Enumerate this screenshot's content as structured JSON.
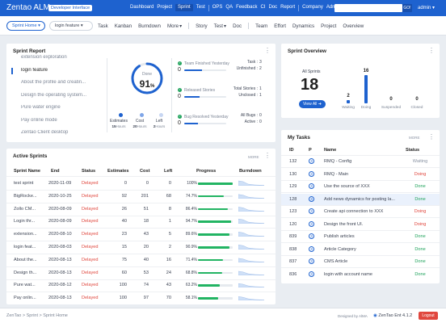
{
  "topbar": {
    "logo": "Zentao ALM",
    "edition": "Developer Interface",
    "nav": [
      "Dashboard",
      "Project",
      "Sprint",
      "Test",
      "OPS",
      "QA",
      "Feedback",
      "CI",
      "Doc",
      "Report",
      "Company",
      "Admin"
    ],
    "active": "Sprint",
    "go_label": "GO!",
    "user": "admin"
  },
  "subbar": {
    "sprint_select": "Sprint Home",
    "feature_select": "login feature",
    "nav": [
      "Task",
      "Kanban",
      "Burndown",
      "More",
      "Story",
      "Test",
      "Doc",
      "Team",
      "Effort",
      "Dynamics",
      "Project",
      "Overview"
    ]
  },
  "report": {
    "title": "Sprint Report",
    "items": [
      "extension exploration",
      "login feature",
      "About the profile and creatin...",
      "Design the operating system...",
      "Pure water engine",
      "Pay online mode",
      "Zentao Client desktop"
    ],
    "selected": "login feature",
    "gauge_label": "Done",
    "gauge_value": "91",
    "gauge_unit": "%",
    "gauge_fraction": 0.91,
    "hours": [
      {
        "label": "Estimates",
        "value": "15",
        "unit": "Hours"
      },
      {
        "label": "Cost",
        "value": "20",
        "unit": "Hours"
      },
      {
        "label": "Left",
        "value": "2",
        "unit": "Hours"
      }
    ],
    "metrics": [
      {
        "label": "Team Finished Yesterday",
        "value": "0",
        "fill": 0.42,
        "stats": [
          {
            "label": "Task :",
            "value": "3"
          },
          {
            "label": "Unfinished :",
            "value": "2"
          }
        ]
      },
      {
        "label": "Released Stories",
        "value": "0",
        "fill": 0.36,
        "stats": [
          {
            "label": "Total Stories :",
            "value": "1"
          },
          {
            "label": "Unclosed :",
            "value": "1"
          }
        ]
      },
      {
        "label": "Bug Resolved Yesterday",
        "value": "0",
        "fill": 0.32,
        "stats": [
          {
            "label": "All Bugs :",
            "value": "0"
          },
          {
            "label": "Active :",
            "value": "0"
          }
        ]
      }
    ]
  },
  "overview": {
    "title": "Sprint Overview",
    "all_label": "All Sprints",
    "all_value": "18",
    "view_all": "View All",
    "bars": [
      {
        "label": "Waiting",
        "value": 2
      },
      {
        "label": "Doing",
        "value": 16
      },
      {
        "label": "Suspended",
        "value": 0
      },
      {
        "label": "Closed",
        "value": 0
      }
    ]
  },
  "active": {
    "title": "Active Sprints",
    "more": "MORE",
    "columns": [
      "Sprint Name",
      "End",
      "Status",
      "Estimates",
      "Cost",
      "Left",
      "Progress",
      "Burndown"
    ],
    "rows": [
      {
        "name": "test sprint",
        "end": "2020-11-09",
        "status": "Delayed",
        "est": "0",
        "cost": "0",
        "left": "0",
        "pct": "100%",
        "p": 1.0
      },
      {
        "name": "BigRocke...",
        "end": "2020-10-25",
        "status": "Delayed",
        "est": "92",
        "cost": "201",
        "left": "68",
        "pct": "74.7%",
        "p": 0.747
      },
      {
        "name": "Zollo CM...",
        "end": "2020-08-09",
        "status": "Delayed",
        "est": "26",
        "cost": "51",
        "left": "8",
        "pct": "86.4%",
        "p": 0.864
      },
      {
        "name": "Login thr...",
        "end": "2020-08-09",
        "status": "Delayed",
        "est": "40",
        "cost": "18",
        "left": "1",
        "pct": "94.7%",
        "p": 0.947
      },
      {
        "name": "extension...",
        "end": "2020-08-10",
        "status": "Delayed",
        "est": "23",
        "cost": "43",
        "left": "5",
        "pct": "89.6%",
        "p": 0.896
      },
      {
        "name": "login feat...",
        "end": "2020-08-03",
        "status": "Delayed",
        "est": "15",
        "cost": "20",
        "left": "2",
        "pct": "90.9%",
        "p": 0.909
      },
      {
        "name": "About the...",
        "end": "2020-08-13",
        "status": "Delayed",
        "est": "75",
        "cost": "40",
        "left": "16",
        "pct": "71.4%",
        "p": 0.714
      },
      {
        "name": "Design th...",
        "end": "2020-08-13",
        "status": "Delayed",
        "est": "60",
        "cost": "53",
        "left": "24",
        "pct": "68.8%",
        "p": 0.688
      },
      {
        "name": "Pure wat...",
        "end": "2020-08-12",
        "status": "Delayed",
        "est": "100",
        "cost": "74",
        "left": "43",
        "pct": "63.2%",
        "p": 0.632
      },
      {
        "name": "Pay onlin...",
        "end": "2020-08-13",
        "status": "Delayed",
        "est": "100",
        "cost": "97",
        "left": "70",
        "pct": "58.1%",
        "p": 0.581
      }
    ]
  },
  "tasks": {
    "title": "My Tasks",
    "more": "MORE",
    "columns": [
      "ID",
      "P",
      "Name",
      "Status"
    ],
    "rows": [
      {
        "id": "132",
        "p": "3",
        "name": "RMQ - Config",
        "status": "Waiting",
        "color": "#8a93a3"
      },
      {
        "id": "130",
        "p": "3",
        "name": "RMQ - Main",
        "status": "Doing",
        "color": "#e0473e"
      },
      {
        "id": "129",
        "p": "3",
        "name": "Use the source of XXX",
        "status": "Done",
        "color": "#22a45e"
      },
      {
        "id": "128",
        "p": "3",
        "name": "Add news dynamics for posting la...",
        "status": "Done",
        "color": "#22a45e"
      },
      {
        "id": "123",
        "p": "3",
        "name": "Create api connection to XXX",
        "status": "Doing",
        "color": "#e0473e"
      },
      {
        "id": "120",
        "p": "3",
        "name": "Design the front UI.",
        "status": "Doing",
        "color": "#e0473e"
      },
      {
        "id": "839",
        "p": "3",
        "name": "Publish articles",
        "status": "Done",
        "color": "#22a45e"
      },
      {
        "id": "838",
        "p": "3",
        "name": "Article Category",
        "status": "Done",
        "color": "#22a45e"
      },
      {
        "id": "837",
        "p": "3",
        "name": "CMS Article",
        "status": "Done",
        "color": "#22a45e"
      },
      {
        "id": "836",
        "p": "3",
        "name": "login with account name",
        "status": "Done",
        "color": "#22a45e"
      }
    ]
  },
  "footer": {
    "breadcrumb": [
      "ZenTao",
      "Sprint",
      "Sprint Home"
    ],
    "designed": "Designed by AlMA",
    "version": "ZenTao Ent 4.1.2",
    "logout": "Logout"
  }
}
